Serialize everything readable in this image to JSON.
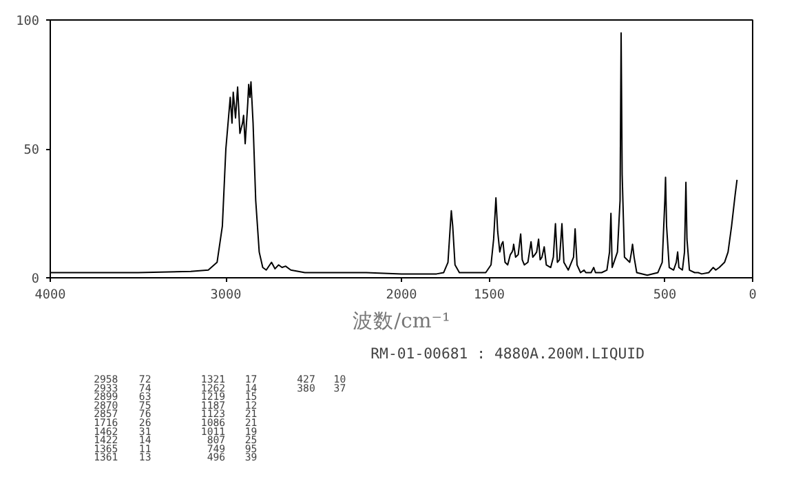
{
  "chart_data": {
    "type": "line",
    "xlabel": "波数/cm⁻¹",
    "x": [
      4000,
      3500,
      3200,
      3100,
      3050,
      3020,
      3000,
      2975,
      2965,
      2958,
      2945,
      2933,
      2920,
      2905,
      2899,
      2890,
      2875,
      2870,
      2863,
      2857,
      2845,
      2830,
      2810,
      2790,
      2770,
      2740,
      2720,
      2700,
      2680,
      2660,
      2630,
      2550,
      2200,
      2000,
      1800,
      1760,
      1735,
      1722,
      1716,
      1708,
      1695,
      1670,
      1520,
      1490,
      1475,
      1462,
      1452,
      1440,
      1430,
      1422,
      1410,
      1395,
      1380,
      1370,
      1365,
      1361,
      1350,
      1335,
      1321,
      1312,
      1300,
      1280,
      1262,
      1252,
      1240,
      1230,
      1219,
      1210,
      1200,
      1187,
      1175,
      1150,
      1135,
      1123,
      1112,
      1100,
      1086,
      1075,
      1050,
      1020,
      1011,
      1000,
      980,
      960,
      950,
      920,
      905,
      895,
      860,
      830,
      815,
      807,
      800,
      790,
      770,
      755,
      749,
      743,
      730,
      700,
      690,
      684,
      675,
      660,
      600,
      540,
      515,
      500,
      496,
      490,
      475,
      450,
      435,
      427,
      420,
      400,
      388,
      380,
      374,
      360,
      330,
      310,
      290,
      250,
      225,
      210,
      190,
      160,
      140,
      120,
      100,
      89
    ],
    "series": [
      {
        "color": "#000000",
        "values": [
          2,
          2,
          2.5,
          3,
          6,
          20,
          50,
          70,
          60,
          72,
          62,
          74,
          56,
          60,
          63,
          52,
          68,
          75,
          70,
          76,
          60,
          30,
          10,
          4,
          3,
          6,
          3.5,
          5,
          4,
          4.5,
          3,
          2,
          2,
          1.5,
          1.5,
          2,
          6,
          20,
          26,
          20,
          5,
          2,
          2,
          5,
          15,
          31,
          18,
          10,
          13,
          14,
          6,
          5,
          9,
          10,
          11,
          13,
          8,
          9,
          17,
          7,
          5,
          6,
          14,
          8,
          9,
          10,
          15,
          7,
          8,
          12,
          5,
          4,
          8,
          21,
          6,
          7,
          21,
          6,
          3,
          8,
          19,
          5,
          2,
          3,
          2,
          2,
          4,
          2,
          2,
          3,
          10,
          25,
          4,
          6,
          10,
          30,
          95,
          40,
          8,
          6,
          10,
          13,
          8,
          2,
          1,
          2,
          6,
          30,
          39,
          20,
          4,
          3,
          6,
          10,
          4,
          3,
          10,
          37,
          15,
          3,
          2,
          2,
          1.5,
          2,
          4,
          3,
          4,
          6,
          10,
          20,
          32,
          38
        ]
      }
    ],
    "xlim": [
      4000,
      0
    ],
    "ylim": [
      0,
      100
    ],
    "xticks": [
      4000,
      3000,
      2000,
      1500,
      500,
      0
    ],
    "yticks": [
      0,
      50,
      100
    ],
    "grid": false,
    "marker": "none",
    "line_style": "solid",
    "annotations": [
      "RM-01-00681 : 4880A.200M.LIQUID",
      "2958",
      "72",
      "2933",
      "74",
      "2899",
      "63",
      "2870",
      "75",
      "2857",
      "76",
      "1716",
      "26",
      "1462",
      "31",
      "1422",
      "14",
      "1365",
      "11",
      "1361",
      "13",
      "1321",
      "17",
      "1262",
      "14",
      "1219",
      "15",
      "1187",
      "12",
      "1123",
      "21",
      "1086",
      "21",
      "1011",
      "19",
      "807",
      "25",
      "749",
      "95",
      "496",
      "39",
      "427",
      "10",
      "380",
      "37"
    ]
  }
}
